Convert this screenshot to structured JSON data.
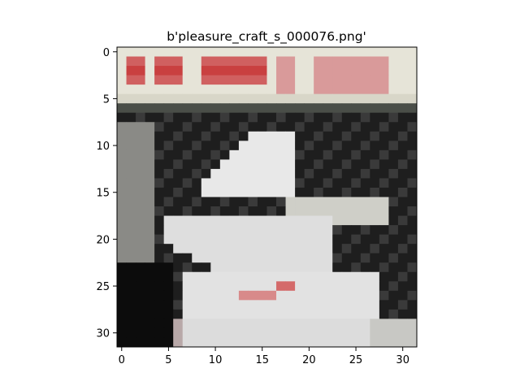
{
  "figure": {
    "title": "b'pleasure_craft_s_000076.png'"
  },
  "image": {
    "description_tag": "pixelated-boat-photo",
    "grid_size": 32,
    "palette": {
      "cream": "#e6e4d8",
      "red": "#c94040",
      "pink": "#d99a9a",
      "black": "#0c0c0c",
      "dark_gray": "#3a3a3a",
      "mid_gray": "#8a8a86",
      "light": "#e8e8e8"
    }
  },
  "axes": {
    "x_ticks": [
      "0",
      "5",
      "10",
      "15",
      "20",
      "25",
      "30"
    ],
    "y_ticks": [
      "0",
      "5",
      "10",
      "15",
      "20",
      "25",
      "30"
    ],
    "xlim": [
      -0.5,
      31.5
    ],
    "ylim": [
      31.5,
      -0.5
    ]
  }
}
